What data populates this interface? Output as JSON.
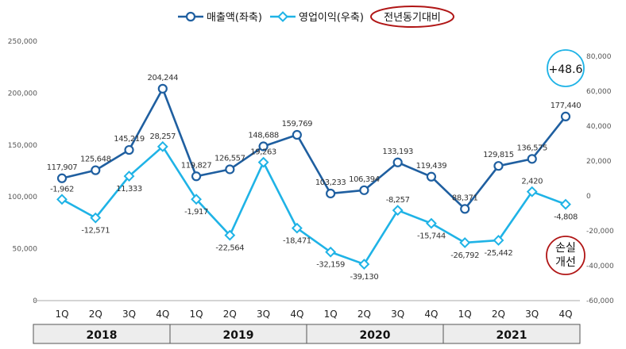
{
  "chart_data": {
    "type": "line",
    "categories": [
      "1Q",
      "2Q",
      "3Q",
      "4Q",
      "1Q",
      "2Q",
      "3Q",
      "4Q",
      "1Q",
      "2Q",
      "3Q",
      "4Q",
      "1Q",
      "2Q",
      "3Q",
      "4Q"
    ],
    "groups": [
      {
        "label": "2018",
        "count": 4
      },
      {
        "label": "2019",
        "count": 4
      },
      {
        "label": "2020",
        "count": 4
      },
      {
        "label": "2021",
        "count": 4
      }
    ],
    "left_axis": {
      "min": 0,
      "max": 250000,
      "step": 50000,
      "ticks": [
        "0",
        "50,000",
        "100,000",
        "150,000",
        "200,000",
        "250,000"
      ]
    },
    "right_axis": {
      "min": -60000,
      "max": 80000,
      "step": 20000,
      "ticks": [
        "-60,000",
        "-40,000",
        "-20,000",
        "0",
        "20,000",
        "40,000",
        "60,000",
        "80,000"
      ]
    },
    "series": [
      {
        "name": "매출액(좌축)",
        "axis": "left",
        "color": "#1f5fa0",
        "marker": "circle",
        "values": [
          117907,
          125648,
          145219,
          204244,
          119827,
          126557,
          148688,
          159769,
          103233,
          106394,
          133193,
          119439,
          88371,
          129815,
          136575,
          177440
        ],
        "labels": [
          "117,907",
          "125,648",
          "145,219",
          "204,244",
          "119,827",
          "126,557",
          "148,688",
          "159,769",
          "103,233",
          "106,394",
          "133,193",
          "119,439",
          "88,371",
          "129,815",
          "136,575",
          "177,440"
        ]
      },
      {
        "name": "영업이익(우축)",
        "axis": "right",
        "color": "#1fb3e6",
        "marker": "diamond",
        "values": [
          -1962,
          -12571,
          11333,
          28257,
          -1917,
          -22564,
          19263,
          -18471,
          -32159,
          -39130,
          -8257,
          -15744,
          -26792,
          -25442,
          2420,
          -4808
        ],
        "labels": [
          "-1,962",
          "-12,571",
          "11,333",
          "28,257",
          "-1,917",
          "-22,564",
          "19,263",
          "-18,471",
          "-32,159",
          "-39,130",
          "-8,257",
          "-15,744",
          "-26,792",
          "-25,442",
          "2,420",
          "-4,808"
        ]
      }
    ],
    "legend_extra": "전년동기대비",
    "annotations": [
      {
        "text": "+48.6",
        "color": "#1fb3e6"
      },
      {
        "lines": [
          "손실",
          "개선"
        ],
        "color": "#b01515"
      }
    ]
  }
}
